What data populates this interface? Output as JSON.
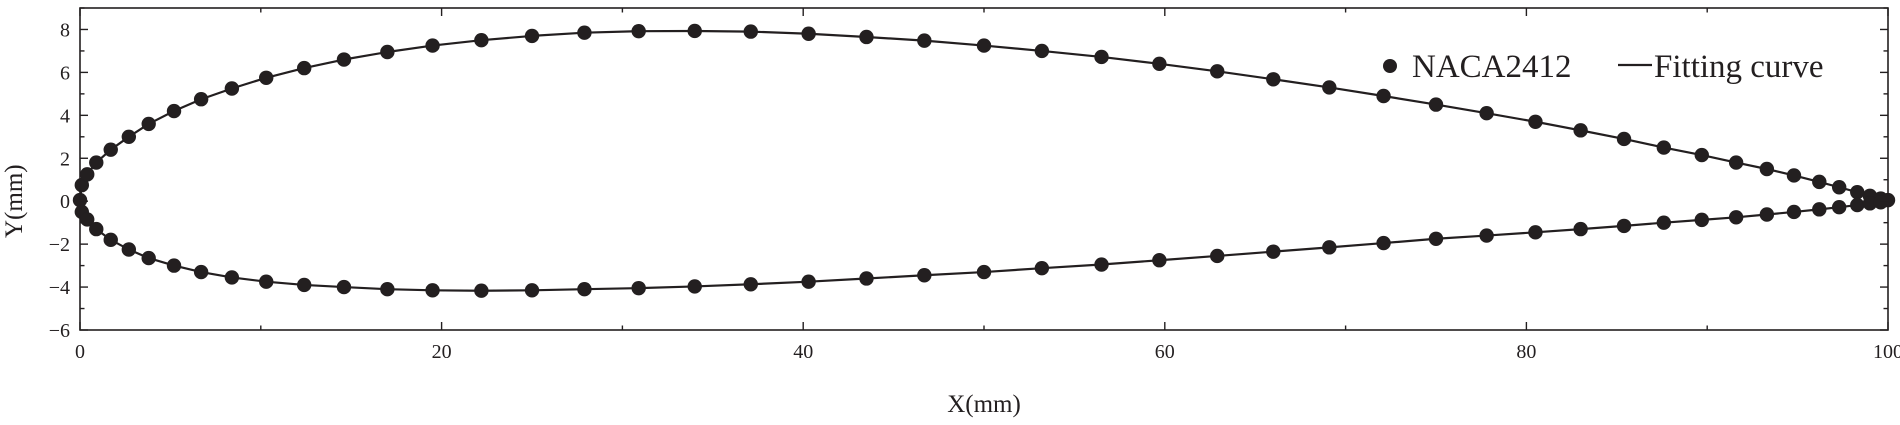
{
  "chart_data": {
    "type": "scatter",
    "xlabel": "X(mm)",
    "ylabel": "Y(mm)",
    "xlim": [
      0,
      100
    ],
    "ylim": [
      -6,
      9
    ],
    "xticks": [
      0,
      20,
      40,
      60,
      80,
      100
    ],
    "yticks": [
      -6,
      -4,
      -2,
      0,
      2,
      4,
      6,
      8
    ],
    "grid": false,
    "legend": {
      "placement": "top-right",
      "point_label": "NACA2412",
      "line_label": "Fitting curve"
    },
    "colors": {
      "marker": "#231f20",
      "line": "#231f20",
      "axis": "#231f20"
    },
    "series": [
      {
        "name": "NACA2412",
        "kind": "points",
        "upper": {
          "x": [
            0,
            0.1,
            0.4,
            0.9,
            1.7,
            2.7,
            3.8,
            5.2,
            6.7,
            8.4,
            10.3,
            12.4,
            14.6,
            17.0,
            19.5,
            22.2,
            25.0,
            27.9,
            30.9,
            34.0,
            37.1,
            40.3,
            43.5,
            46.7,
            50.0,
            53.2,
            56.5,
            59.7,
            62.9,
            66.0,
            69.1,
            72.1,
            75.0,
            77.8,
            80.5,
            83.0,
            85.4,
            87.6,
            89.7,
            91.6,
            93.3,
            94.8,
            96.2,
            97.3,
            98.3,
            99.0,
            99.6,
            100
          ],
          "y": [
            0.05,
            0.75,
            1.25,
            1.8,
            2.4,
            3.0,
            3.6,
            4.2,
            4.75,
            5.25,
            5.75,
            6.2,
            6.6,
            6.95,
            7.25,
            7.5,
            7.7,
            7.85,
            7.92,
            7.93,
            7.9,
            7.8,
            7.65,
            7.48,
            7.25,
            7.0,
            6.72,
            6.4,
            6.05,
            5.68,
            5.3,
            4.9,
            4.5,
            4.1,
            3.7,
            3.3,
            2.9,
            2.5,
            2.15,
            1.8,
            1.5,
            1.2,
            0.9,
            0.65,
            0.42,
            0.25,
            0.12,
            0.05
          ]
        },
        "lower": {
          "x": [
            0.1,
            0.4,
            0.9,
            1.7,
            2.7,
            3.8,
            5.2,
            6.7,
            8.4,
            10.3,
            12.4,
            14.6,
            17.0,
            19.5,
            22.2,
            25.0,
            27.9,
            30.9,
            34.0,
            37.1,
            40.3,
            43.5,
            46.7,
            50.0,
            53.2,
            56.5,
            59.7,
            62.9,
            66.0,
            69.1,
            72.1,
            75.0,
            77.8,
            80.5,
            83.0,
            85.4,
            87.6,
            89.7,
            91.6,
            93.3,
            94.8,
            96.2,
            97.3,
            98.3,
            99.0,
            99.6
          ],
          "y": [
            -0.5,
            -0.85,
            -1.3,
            -1.8,
            -2.25,
            -2.65,
            -3.0,
            -3.3,
            -3.55,
            -3.75,
            -3.9,
            -4.0,
            -4.1,
            -4.15,
            -4.17,
            -4.15,
            -4.1,
            -4.05,
            -3.97,
            -3.87,
            -3.75,
            -3.6,
            -3.45,
            -3.3,
            -3.12,
            -2.95,
            -2.75,
            -2.55,
            -2.35,
            -2.15,
            -1.95,
            -1.75,
            -1.6,
            -1.45,
            -1.3,
            -1.15,
            -1.0,
            -0.87,
            -0.75,
            -0.62,
            -0.5,
            -0.38,
            -0.28,
            -0.18,
            -0.1,
            -0.05
          ]
        }
      },
      {
        "name": "Fitting curve",
        "kind": "line",
        "upper": {
          "x": [
            0,
            0.1,
            0.4,
            0.9,
            1.7,
            2.7,
            3.8,
            5.2,
            6.7,
            8.4,
            10.3,
            12.4,
            14.6,
            17.0,
            19.5,
            22.2,
            25.0,
            27.9,
            30.9,
            34.0,
            37.1,
            40.3,
            43.5,
            46.7,
            50.0,
            53.2,
            56.5,
            59.7,
            62.9,
            66.0,
            69.1,
            72.1,
            75.0,
            77.8,
            80.5,
            83.0,
            85.4,
            87.6,
            89.7,
            91.6,
            93.3,
            94.8,
            96.2,
            97.3,
            98.3,
            99.0,
            99.6,
            100
          ],
          "y": [
            0.05,
            0.75,
            1.25,
            1.8,
            2.4,
            3.0,
            3.6,
            4.2,
            4.75,
            5.25,
            5.75,
            6.2,
            6.6,
            6.95,
            7.25,
            7.5,
            7.7,
            7.85,
            7.92,
            7.93,
            7.9,
            7.8,
            7.65,
            7.48,
            7.25,
            7.0,
            6.72,
            6.4,
            6.05,
            5.68,
            5.3,
            4.9,
            4.5,
            4.1,
            3.7,
            3.3,
            2.9,
            2.5,
            2.15,
            1.8,
            1.5,
            1.2,
            0.9,
            0.65,
            0.42,
            0.25,
            0.12,
            0.05
          ]
        },
        "lower": {
          "x": [
            0,
            0.1,
            0.4,
            0.9,
            1.7,
            2.7,
            3.8,
            5.2,
            6.7,
            8.4,
            10.3,
            12.4,
            14.6,
            17.0,
            19.5,
            22.2,
            25.0,
            27.9,
            30.9,
            34.0,
            37.1,
            40.3,
            43.5,
            46.7,
            50.0,
            53.2,
            56.5,
            59.7,
            62.9,
            66.0,
            69.1,
            72.1,
            75.0,
            77.8,
            80.5,
            83.0,
            85.4,
            87.6,
            89.7,
            91.6,
            93.3,
            94.8,
            96.2,
            97.3,
            98.3,
            99.0,
            99.6,
            100
          ],
          "y": [
            0.05,
            -0.5,
            -0.85,
            -1.3,
            -1.8,
            -2.25,
            -2.65,
            -3.0,
            -3.3,
            -3.55,
            -3.75,
            -3.9,
            -4.0,
            -4.1,
            -4.15,
            -4.17,
            -4.15,
            -4.1,
            -4.05,
            -3.97,
            -3.87,
            -3.75,
            -3.6,
            -3.45,
            -3.3,
            -3.12,
            -2.95,
            -2.75,
            -2.55,
            -2.35,
            -2.15,
            -1.95,
            -1.75,
            -1.6,
            -1.45,
            -1.3,
            -1.15,
            -1.0,
            -0.87,
            -0.75,
            -0.62,
            -0.5,
            -0.38,
            -0.28,
            -0.18,
            -0.1,
            -0.05,
            0.05
          ]
        }
      }
    ]
  }
}
